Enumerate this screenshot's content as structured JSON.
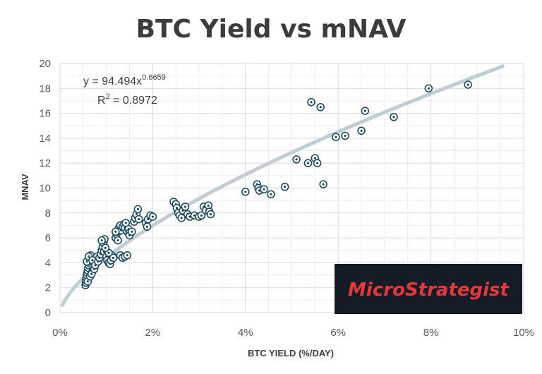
{
  "chart_data": {
    "type": "scatter",
    "title": "BTC Yield vs mNAV",
    "xlabel": "BTC YIELD (%/DAY)",
    "ylabel": "MNAV",
    "xlim": [
      0,
      10
    ],
    "ylim": [
      0,
      20
    ],
    "x_ticks": [
      "0%",
      "2%",
      "4%",
      "6%",
      "8%",
      "10%"
    ],
    "y_ticks": [
      "0",
      "2",
      "4",
      "6",
      "8",
      "10",
      "12",
      "14",
      "16",
      "18",
      "20"
    ],
    "grid": true,
    "trendline": {
      "type": "power",
      "coefficient": 94.494,
      "exponent": 0.6659,
      "x_range": [
        0.05,
        9.55
      ],
      "equation_prefix": "y = 94.494x",
      "equation_exponent": "0.6659",
      "r2_prefix": "R",
      "r2_sup": "2",
      "r2_suffix": " = 0.8972",
      "color": "#bfcdd4"
    },
    "marker_color": "#1d4d63",
    "points": [
      [
        0.55,
        2.2
      ],
      [
        0.56,
        2.4
      ],
      [
        0.56,
        2.6
      ],
      [
        0.57,
        2.8
      ],
      [
        0.58,
        3.0
      ],
      [
        0.59,
        3.2
      ],
      [
        0.6,
        3.4
      ],
      [
        0.61,
        3.6
      ],
      [
        0.62,
        3.8
      ],
      [
        0.63,
        4.0
      ],
      [
        0.64,
        4.2
      ],
      [
        0.65,
        4.4
      ],
      [
        0.66,
        4.6
      ],
      [
        0.6,
        2.5
      ],
      [
        0.65,
        2.9
      ],
      [
        0.7,
        3.3
      ],
      [
        0.72,
        3.7
      ],
      [
        0.75,
        4.0
      ],
      [
        0.78,
        4.3
      ],
      [
        0.8,
        4.5
      ],
      [
        0.68,
        3.1
      ],
      [
        0.74,
        3.5
      ],
      [
        0.58,
        4.1
      ],
      [
        0.62,
        4.5
      ],
      [
        0.7,
        4.2
      ],
      [
        0.76,
        3.8
      ],
      [
        0.82,
        4.1
      ],
      [
        0.85,
        4.4
      ],
      [
        0.88,
        4.7
      ],
      [
        0.9,
        5.0
      ],
      [
        0.92,
        5.3
      ],
      [
        0.94,
        5.6
      ],
      [
        0.96,
        5.9
      ],
      [
        0.9,
        5.8
      ],
      [
        0.95,
        4.9
      ],
      [
        1.0,
        4.5
      ],
      [
        1.02,
        4.2
      ],
      [
        1.05,
        4.0
      ],
      [
        1.08,
        3.9
      ],
      [
        1.1,
        4.2
      ],
      [
        1.12,
        4.6
      ],
      [
        1.15,
        4.4
      ],
      [
        1.05,
        4.8
      ],
      [
        0.98,
        5.2
      ],
      [
        1.2,
        6.0
      ],
      [
        1.22,
        6.3
      ],
      [
        1.25,
        6.5
      ],
      [
        1.27,
        6.8
      ],
      [
        1.3,
        7.0
      ],
      [
        1.32,
        6.6
      ],
      [
        1.35,
        6.9
      ],
      [
        1.38,
        7.1
      ],
      [
        1.4,
        6.8
      ],
      [
        1.42,
        7.2
      ],
      [
        1.45,
        6.5
      ],
      [
        1.48,
        6.7
      ],
      [
        1.5,
        6.4
      ],
      [
        1.25,
        5.8
      ],
      [
        1.2,
        6.5
      ],
      [
        1.3,
        4.6
      ],
      [
        1.35,
        4.4
      ],
      [
        1.4,
        4.5
      ],
      [
        1.45,
        4.6
      ],
      [
        1.5,
        6.2
      ],
      [
        1.55,
        6.5
      ],
      [
        1.6,
        7.3
      ],
      [
        1.62,
        7.6
      ],
      [
        1.65,
        7.9
      ],
      [
        1.68,
        8.3
      ],
      [
        1.7,
        7.5
      ],
      [
        1.85,
        7.2
      ],
      [
        1.9,
        7.5
      ],
      [
        1.95,
        7.8
      ],
      [
        2.0,
        7.7
      ],
      [
        1.88,
        6.9
      ],
      [
        2.45,
        8.9
      ],
      [
        2.5,
        8.7
      ],
      [
        2.52,
        8.4
      ],
      [
        2.55,
        8.0
      ],
      [
        2.58,
        7.8
      ],
      [
        2.62,
        7.6
      ],
      [
        2.65,
        8.2
      ],
      [
        2.7,
        8.5
      ],
      [
        2.75,
        7.9
      ],
      [
        2.8,
        7.7
      ],
      [
        2.9,
        7.8
      ],
      [
        3.0,
        7.7
      ],
      [
        3.05,
        7.8
      ],
      [
        3.1,
        8.5
      ],
      [
        3.15,
        8.2
      ],
      [
        3.2,
        8.6
      ],
      [
        3.22,
        8.1
      ],
      [
        3.25,
        7.9
      ],
      [
        4.0,
        9.7
      ],
      [
        4.25,
        10.3
      ],
      [
        4.28,
        10.0
      ],
      [
        4.3,
        9.8
      ],
      [
        4.4,
        9.9
      ],
      [
        4.55,
        9.5
      ],
      [
        4.85,
        10.1
      ],
      [
        5.1,
        12.3
      ],
      [
        5.35,
        12.0
      ],
      [
        5.42,
        16.9
      ],
      [
        5.5,
        12.4
      ],
      [
        5.55,
        12.0
      ],
      [
        5.62,
        16.5
      ],
      [
        5.68,
        10.3
      ],
      [
        5.95,
        14.1
      ],
      [
        6.15,
        14.2
      ],
      [
        6.5,
        14.6
      ],
      [
        6.58,
        16.2
      ],
      [
        7.2,
        15.7
      ],
      [
        7.95,
        18.0
      ],
      [
        8.8,
        18.3
      ]
    ]
  },
  "logo": {
    "text_part1": "Micro",
    "text_part2": "Strategist",
    "background": "#161c26",
    "text_color": "#e8373b"
  }
}
